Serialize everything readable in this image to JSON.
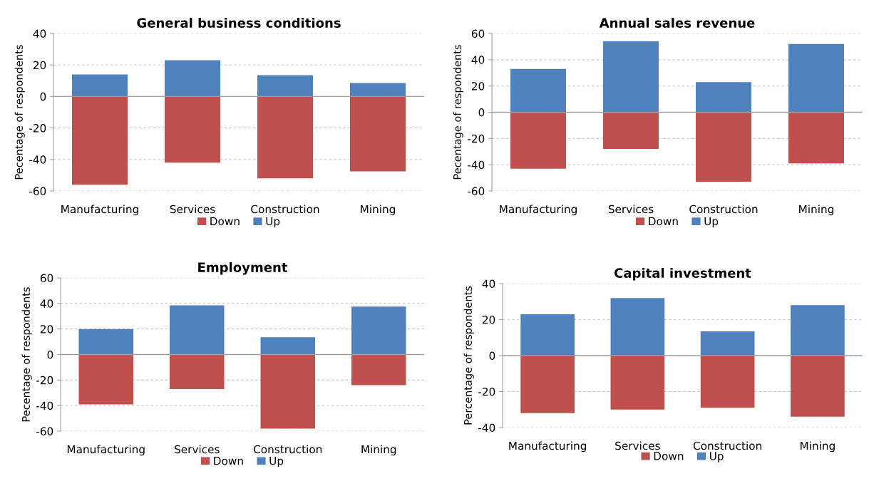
{
  "chart_data": [
    {
      "type": "bar",
      "title": "General business conditions",
      "ylabel": "Pecentage of respondents",
      "categories": [
        "Manufacturing",
        "Services",
        "Construction",
        "Mining"
      ],
      "stacked": true,
      "series": [
        {
          "name": "Down",
          "color": "#c0504d",
          "values": [
            -56,
            -42,
            -52,
            -47.5
          ]
        },
        {
          "name": "Up",
          "color": "#4f81bd",
          "values": [
            14,
            23,
            13.5,
            8.5
          ]
        }
      ],
      "ylim": [
        -60,
        40
      ],
      "yticks": [
        -60,
        -40,
        -20,
        0,
        20,
        40
      ],
      "grid": "y",
      "legend": "bottom"
    },
    {
      "type": "bar",
      "title": "Annual sales revenue",
      "ylabel": "Pecentage of respondents",
      "categories": [
        "Manufacturing",
        "Services",
        "Construction",
        "Mining"
      ],
      "stacked": true,
      "series": [
        {
          "name": "Down",
          "color": "#c0504d",
          "values": [
            -43,
            -28,
            -53,
            -39
          ]
        },
        {
          "name": "Up",
          "color": "#4f81bd",
          "values": [
            33,
            54,
            23,
            52
          ]
        }
      ],
      "ylim": [
        -60,
        60
      ],
      "yticks": [
        -60,
        -40,
        -20,
        0,
        20,
        40,
        60
      ],
      "grid": "y",
      "legend": "bottom"
    },
    {
      "type": "bar",
      "title": "Employment",
      "ylabel": "Pecentage of respondents",
      "categories": [
        "Manufacturing",
        "Services",
        "Construction",
        "Mining"
      ],
      "stacked": true,
      "series": [
        {
          "name": "Down",
          "color": "#c0504d",
          "values": [
            -39,
            -27,
            -58,
            -24
          ]
        },
        {
          "name": "Up",
          "color": "#4f81bd",
          "values": [
            20,
            38.5,
            13.5,
            37.5
          ]
        }
      ],
      "ylim": [
        -60,
        60
      ],
      "yticks": [
        -60,
        -40,
        -20,
        0,
        20,
        40,
        60
      ],
      "grid": "y",
      "legend": "bottom"
    },
    {
      "type": "bar",
      "title": "Capital investment",
      "ylabel": "Percentage of respondents",
      "categories": [
        "Manufacturing",
        "Services",
        "Construction",
        "Mining"
      ],
      "stacked": true,
      "series": [
        {
          "name": "Down",
          "color": "#c0504d",
          "values": [
            -32,
            -30,
            -29,
            -34
          ]
        },
        {
          "name": "Up",
          "color": "#4f81bd",
          "values": [
            23,
            32,
            13.5,
            28
          ]
        }
      ],
      "ylim": [
        -40,
        40
      ],
      "yticks": [
        -40,
        -20,
        0,
        20,
        40
      ],
      "grid": "y",
      "legend": "bottom"
    }
  ]
}
